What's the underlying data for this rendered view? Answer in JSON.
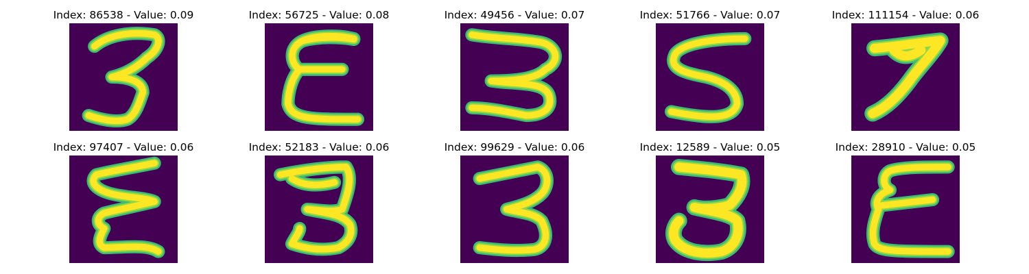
{
  "colors": {
    "background": "#440154",
    "stroke_edge": "#3bbb75",
    "stroke_mid": "#8fd744",
    "stroke_core": "#fde725"
  },
  "panels": [
    {
      "title": "Index: 86538 - Value: 0.09",
      "image": "digit-3"
    },
    {
      "title": "Index: 56725 - Value: 0.08",
      "image": "digit-reversed-3"
    },
    {
      "title": "Index: 49456 - Value: 0.07",
      "image": "digit-3"
    },
    {
      "title": "Index: 51766 - Value: 0.07",
      "image": "digit-5"
    },
    {
      "title": "Index: 111154 - Value: 0.06",
      "image": "digit-7"
    },
    {
      "title": "Index: 97407 - Value: 0.06",
      "image": "digit-reversed-3"
    },
    {
      "title": "Index: 52183 - Value: 0.06",
      "image": "digit-3"
    },
    {
      "title": "Index: 99629 - Value: 0.06",
      "image": "digit-3"
    },
    {
      "title": "Index: 12589 - Value: 0.05",
      "image": "digit-3"
    },
    {
      "title": "Index: 28910 - Value: 0.05",
      "image": "digit-reversed-3"
    }
  ]
}
